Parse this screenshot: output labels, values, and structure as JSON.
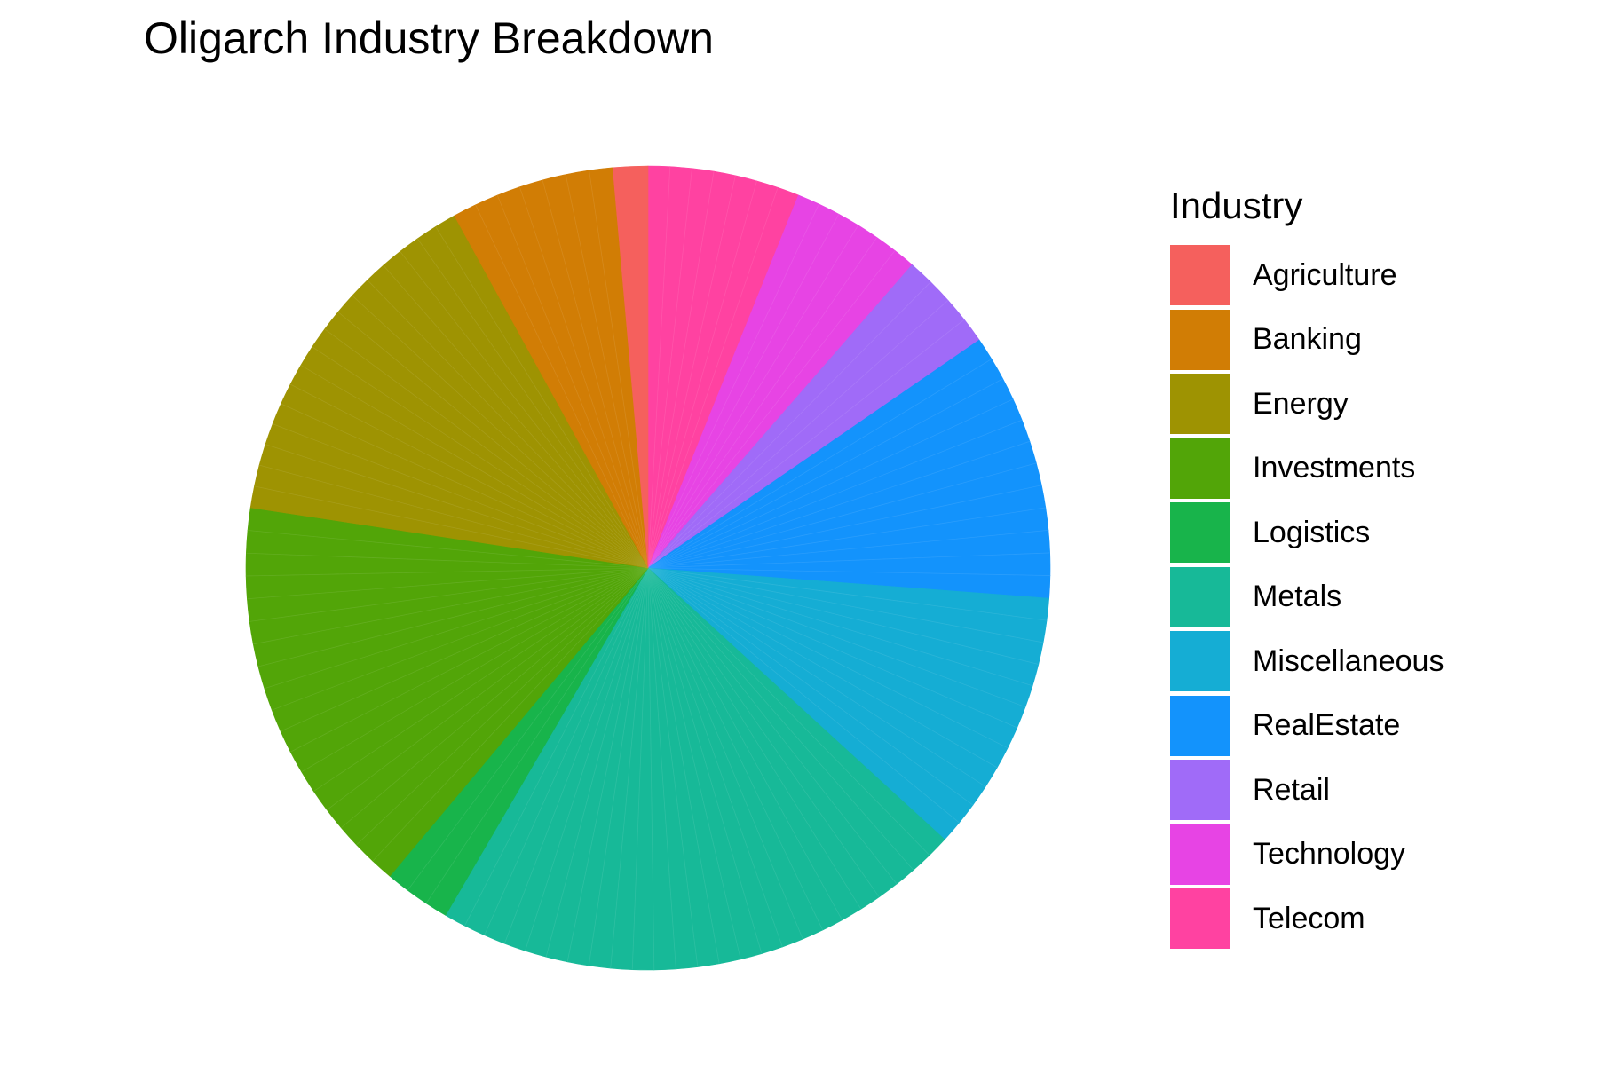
{
  "chart_data": {
    "type": "pie",
    "title": "Oligarch Industry Breakdown",
    "legend": {
      "title": "Industry",
      "position": "right"
    },
    "slices": [
      {
        "label": "Telecom",
        "value": 6.1,
        "color": "#FF42A1",
        "strips": 7
      },
      {
        "label": "Technology",
        "value": 5.3,
        "color": "#E744E4",
        "strips": 6
      },
      {
        "label": "Retail",
        "value": 4.0,
        "color": "#A06BF8",
        "strips": 4
      },
      {
        "label": "RealEstate",
        "value": 10.8,
        "color": "#1393FC",
        "strips": 12
      },
      {
        "label": "Miscellaneous",
        "value": 10.6,
        "color": "#15ADD4",
        "strips": 12
      },
      {
        "label": "Metals",
        "value": 21.6,
        "color": "#17B998",
        "strips": 25
      },
      {
        "label": "Logistics",
        "value": 2.7,
        "color": "#18B44B",
        "strips": 3
      },
      {
        "label": "Investments",
        "value": 16.3,
        "color": "#52A508",
        "strips": 18
      },
      {
        "label": "Energy",
        "value": 14.6,
        "color": "#9E9302",
        "strips": 17
      },
      {
        "label": "Banking",
        "value": 6.6,
        "color": "#D17D05",
        "strips": 7
      },
      {
        "label": "Agriculture",
        "value": 1.4,
        "color": "#F5605D",
        "strips": 1
      }
    ],
    "legend_entries": [
      {
        "label": "Agriculture",
        "color": "#F5605D"
      },
      {
        "label": "Banking",
        "color": "#D17D05"
      },
      {
        "label": "Energy",
        "color": "#9E9302"
      },
      {
        "label": "Investments",
        "color": "#52A508"
      },
      {
        "label": "Logistics",
        "color": "#18B44B"
      },
      {
        "label": "Metals",
        "color": "#17B998"
      },
      {
        "label": "Miscellaneous",
        "color": "#15ADD4"
      },
      {
        "label": "RealEstate",
        "color": "#1393FC"
      },
      {
        "label": "Retail",
        "color": "#A06BF8"
      },
      {
        "label": "Technology",
        "color": "#E744E4"
      },
      {
        "label": "Telecom",
        "color": "#FF42A1"
      }
    ]
  }
}
